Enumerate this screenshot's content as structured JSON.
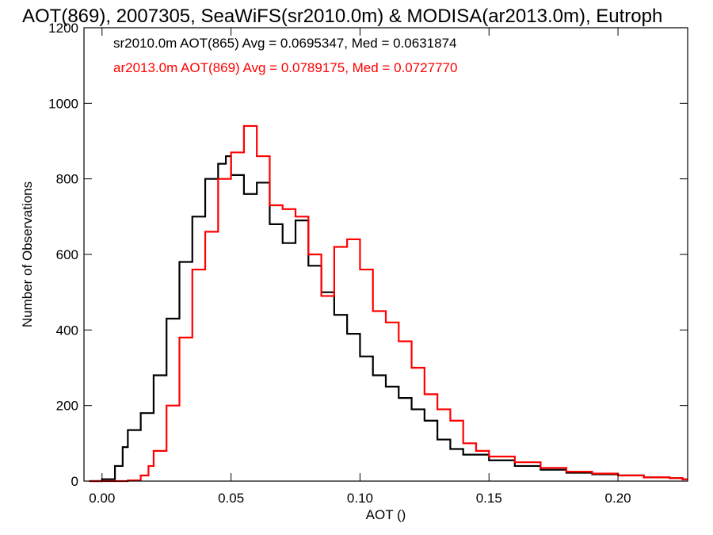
{
  "chart_data": {
    "type": "line",
    "title": "AOT(869), 2007305, SeaWiFS(sr2010.0m) & MODISA(ar2013.0m), Eutroph",
    "xlabel": "AOT ()",
    "ylabel": "Number of Observations",
    "xlim": [
      -0.007,
      0.227
    ],
    "ylim": [
      0,
      1200
    ],
    "xticks": [
      0.0,
      0.05,
      0.1,
      0.15,
      0.2
    ],
    "xtick_labels": [
      "0.00",
      "0.05",
      "0.10",
      "0.15",
      "0.20"
    ],
    "yticks": [
      0,
      200,
      400,
      600,
      800,
      1000,
      1200
    ],
    "ytick_labels": [
      "0",
      "200",
      "400",
      "600",
      "800",
      "1000",
      "1200"
    ],
    "legend_position": "top-left",
    "grid": false,
    "series": [
      {
        "name": "sr2010.0m AOT(865) Avg = 0.0695347, Med = 0.0631874",
        "color": "#000000",
        "style": "step",
        "x": [
          -0.005,
          0.0,
          0.005,
          0.008,
          0.01,
          0.015,
          0.02,
          0.025,
          0.03,
          0.035,
          0.04,
          0.045,
          0.048,
          0.05,
          0.055,
          0.06,
          0.065,
          0.07,
          0.075,
          0.08,
          0.085,
          0.09,
          0.095,
          0.1,
          0.105,
          0.11,
          0.115,
          0.12,
          0.125,
          0.13,
          0.135,
          0.14,
          0.15,
          0.16,
          0.17,
          0.18,
          0.19,
          0.2,
          0.21,
          0.22,
          0.225
        ],
        "y": [
          0,
          5,
          40,
          90,
          135,
          180,
          280,
          430,
          580,
          700,
          800,
          840,
          860,
          810,
          760,
          790,
          680,
          630,
          690,
          570,
          500,
          440,
          390,
          330,
          280,
          250,
          220,
          190,
          160,
          110,
          85,
          70,
          55,
          40,
          30,
          22,
          18,
          15,
          10,
          8,
          5
        ]
      },
      {
        "name": "ar2013.0m AOT(869) Avg = 0.0789175, Med = 0.0727770",
        "color": "#ff0000",
        "style": "step",
        "x": [
          -0.005,
          0.005,
          0.01,
          0.015,
          0.018,
          0.02,
          0.025,
          0.03,
          0.035,
          0.04,
          0.045,
          0.05,
          0.055,
          0.06,
          0.065,
          0.07,
          0.075,
          0.08,
          0.085,
          0.09,
          0.095,
          0.1,
          0.105,
          0.11,
          0.115,
          0.12,
          0.125,
          0.13,
          0.135,
          0.14,
          0.145,
          0.15,
          0.16,
          0.17,
          0.18,
          0.19,
          0.2,
          0.21,
          0.22,
          0.225
        ],
        "y": [
          0,
          0,
          2,
          15,
          40,
          80,
          200,
          380,
          560,
          660,
          800,
          870,
          940,
          860,
          730,
          720,
          700,
          600,
          490,
          620,
          640,
          560,
          450,
          420,
          370,
          300,
          230,
          190,
          160,
          100,
          80,
          65,
          50,
          35,
          25,
          20,
          15,
          10,
          8,
          5
        ]
      }
    ]
  }
}
